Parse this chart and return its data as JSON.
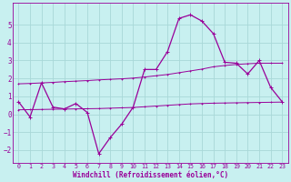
{
  "background_color": "#c8f0f0",
  "grid_color": "#a8d8d8",
  "line_color": "#990099",
  "xlabel": "Windchill (Refroidissement éolien,°C)",
  "xlim": [
    -0.5,
    23.5
  ],
  "ylim": [
    -2.7,
    6.2
  ],
  "yticks": [
    -2,
    -1,
    0,
    1,
    2,
    3,
    4,
    5
  ],
  "xticks": [
    0,
    1,
    2,
    3,
    4,
    5,
    6,
    7,
    8,
    9,
    10,
    11,
    12,
    13,
    14,
    15,
    16,
    17,
    18,
    19,
    20,
    21,
    22,
    23
  ],
  "main_x": [
    0,
    1,
    2,
    3,
    4,
    5,
    6,
    7,
    8,
    9,
    10,
    11,
    12,
    13,
    14,
    15,
    16,
    17,
    18,
    19,
    20,
    21,
    22,
    23
  ],
  "main_y": [
    0.7,
    -0.15,
    1.75,
    0.4,
    0.3,
    0.6,
    0.1,
    -2.2,
    -1.3,
    -0.55,
    0.4,
    2.5,
    2.5,
    3.5,
    5.35,
    5.55,
    5.2,
    4.5,
    2.9,
    2.85,
    2.25,
    3.0,
    1.5,
    0.7
  ],
  "upper_x": [
    0,
    1,
    2,
    3,
    4,
    5,
    6,
    7,
    8,
    9,
    10,
    11,
    12,
    13,
    14,
    15,
    16,
    17,
    18,
    19,
    20,
    21,
    22,
    23
  ],
  "upper_y": [
    1.7,
    1.72,
    1.75,
    1.78,
    1.82,
    1.85,
    1.88,
    1.92,
    1.95,
    1.98,
    2.02,
    2.08,
    2.15,
    2.22,
    2.32,
    2.42,
    2.52,
    2.65,
    2.72,
    2.78,
    2.82,
    2.85,
    2.85,
    2.85
  ],
  "lower_x": [
    0,
    1,
    2,
    3,
    4,
    5,
    6,
    7,
    8,
    9,
    10,
    11,
    12,
    13,
    14,
    15,
    16,
    17,
    18,
    19,
    20,
    21,
    22,
    23
  ],
  "lower_y": [
    0.25,
    0.26,
    0.27,
    0.28,
    0.29,
    0.3,
    0.31,
    0.32,
    0.34,
    0.36,
    0.38,
    0.42,
    0.46,
    0.5,
    0.54,
    0.58,
    0.6,
    0.62,
    0.63,
    0.64,
    0.65,
    0.66,
    0.67,
    0.68
  ]
}
